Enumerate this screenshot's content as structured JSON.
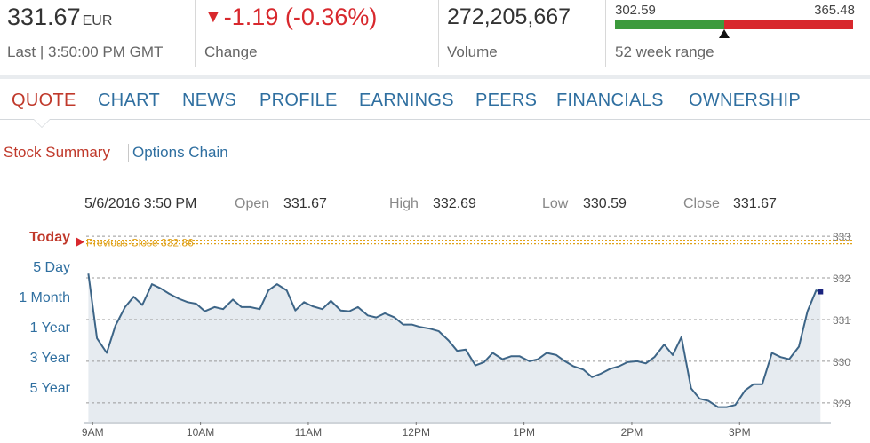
{
  "quote": {
    "last_price": "331.67",
    "currency": "EUR",
    "last_label": "Last | 3:50:00 PM GMT",
    "change_value": "-1.19 (-0.36%)",
    "change_label": "Change",
    "volume": "272,205,667",
    "volume_label": "Volume",
    "range_low": "302.59",
    "range_high": "365.48",
    "range_label": "52 week range",
    "range_position": 0.46
  },
  "tabs": [
    {
      "label": "QUOTE",
      "active": true
    },
    {
      "label": "CHART",
      "active": false
    },
    {
      "label": "NEWS",
      "active": false
    },
    {
      "label": "PROFILE",
      "active": false
    },
    {
      "label": "EARNINGS",
      "active": false
    },
    {
      "label": "PEERS",
      "active": false
    },
    {
      "label": "FINANCIALS",
      "active": false
    },
    {
      "label": "OWNERSHIP",
      "active": false
    }
  ],
  "subtabs": [
    {
      "label": "Stock Summary",
      "active": true
    },
    {
      "label": "Options Chain",
      "active": false
    }
  ],
  "summary": {
    "datetime": "5/6/2016 3:50 PM",
    "open_label": "Open",
    "open_value": "331.67",
    "high_label": "High",
    "high_value": "332.69",
    "low_label": "Low",
    "low_value": "330.59",
    "close_label": "Close",
    "close_value": "331.67"
  },
  "periods": [
    "Today",
    "5 Day",
    "1 Month",
    "1 Year",
    "3 Year",
    "5 Year"
  ],
  "colors": {
    "accent_red": "#d8282d",
    "tab_blue": "#2f6fa0",
    "range_green": "#3c9a3c",
    "line": "#3d6587",
    "area": "#e6ebf0",
    "prev_close": "#e0a21a"
  },
  "chart_data": {
    "type": "area",
    "prev_close_label": "Previous Close 332.86",
    "prev_close": 332.86,
    "ylim": [
      328.55,
      333.3
    ],
    "y_ticks": [
      333,
      332,
      331,
      330,
      329
    ],
    "x_ticks": [
      "9AM",
      "10AM",
      "11AM",
      "12PM",
      "1PM",
      "2PM",
      "3PM"
    ],
    "x_range": [
      8.94,
      15.83
    ],
    "grid": true,
    "series": [
      {
        "x": [
          8.96,
          9.04,
          9.13,
          9.21,
          9.3,
          9.38,
          9.46,
          9.55,
          9.63,
          9.71,
          9.8,
          9.88,
          9.96,
          10.04,
          10.13,
          10.21,
          10.3,
          10.38,
          10.46,
          10.55,
          10.63,
          10.71,
          10.8,
          10.88,
          10.96,
          11.04,
          11.13,
          11.21,
          11.3,
          11.38,
          11.46,
          11.55,
          11.63,
          11.71,
          11.8,
          11.88,
          11.96,
          12.04,
          12.13,
          12.21,
          12.3,
          12.38,
          12.46,
          12.55,
          12.63,
          12.71,
          12.8,
          12.88,
          12.96,
          13.05,
          13.13,
          13.21,
          13.3,
          13.38,
          13.46,
          13.55,
          13.63,
          13.71,
          13.8,
          13.88,
          13.96,
          14.05,
          14.13,
          14.21,
          14.3,
          14.38,
          14.46,
          14.55,
          14.63,
          14.71,
          14.8,
          14.88,
          14.96,
          15.05,
          15.13,
          15.21,
          15.3,
          15.38,
          15.46,
          15.55,
          15.63,
          15.71,
          15.75
        ],
        "values": [
          332.1,
          330.55,
          330.2,
          330.85,
          331.3,
          331.55,
          331.35,
          331.85,
          331.75,
          331.62,
          331.5,
          331.42,
          331.38,
          331.2,
          331.3,
          331.25,
          331.48,
          331.3,
          331.3,
          331.25,
          331.7,
          331.85,
          331.7,
          331.22,
          331.42,
          331.32,
          331.25,
          331.45,
          331.22,
          331.2,
          331.3,
          331.1,
          331.05,
          331.15,
          331.05,
          330.88,
          330.88,
          330.82,
          330.78,
          330.72,
          330.5,
          330.25,
          330.28,
          329.9,
          329.98,
          330.2,
          330.05,
          330.12,
          330.12,
          330.0,
          330.05,
          330.2,
          330.15,
          330.0,
          329.88,
          329.8,
          329.62,
          329.7,
          329.82,
          329.88,
          329.98,
          330.0,
          329.95,
          330.1,
          330.4,
          330.15,
          330.58,
          329.35,
          329.1,
          329.05,
          328.9,
          328.9,
          328.95,
          329.3,
          329.45,
          329.45,
          330.2,
          330.1,
          330.05,
          330.35,
          331.2,
          331.7,
          331.67
        ]
      }
    ]
  }
}
